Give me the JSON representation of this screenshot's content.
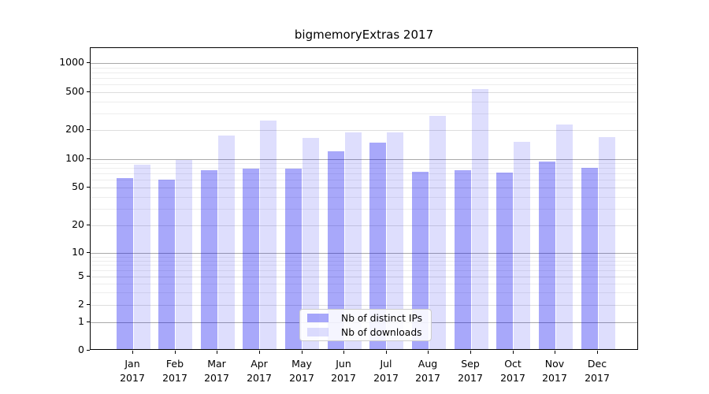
{
  "chart_data": {
    "type": "bar",
    "title": "bigmemoryExtras 2017",
    "categories": [
      "Jan",
      "Feb",
      "Mar",
      "Apr",
      "May",
      "Jun",
      "Jul",
      "Aug",
      "Sep",
      "Oct",
      "Nov",
      "Dec"
    ],
    "category_year": "2017",
    "series": [
      {
        "name": "Nb of distinct IPs",
        "color": "rgba(0,0,240,0.34)",
        "values": [
          60,
          58,
          73,
          76,
          76,
          116,
          142,
          70,
          73,
          69,
          90,
          78
        ]
      },
      {
        "name": "Nb of downloads",
        "color": "rgba(0,0,240,0.13)",
        "values": [
          84,
          94,
          168,
          245,
          160,
          182,
          183,
          272,
          512,
          146,
          222,
          163
        ]
      }
    ],
    "yscale": "asinh-log",
    "yticks": [
      0,
      1,
      2,
      5,
      10,
      20,
      50,
      100,
      200,
      500,
      1000
    ],
    "ylim": [
      0,
      1400
    ],
    "grid": "horizontal major and minor",
    "legend_position": "lower center"
  },
  "colors": {
    "grid_major": "#a9a9a9",
    "grid_minor_labeled": "#dedede",
    "grid_minor_faint": "#ededed",
    "axis": "#000000",
    "legend_border": "#cccccc"
  }
}
